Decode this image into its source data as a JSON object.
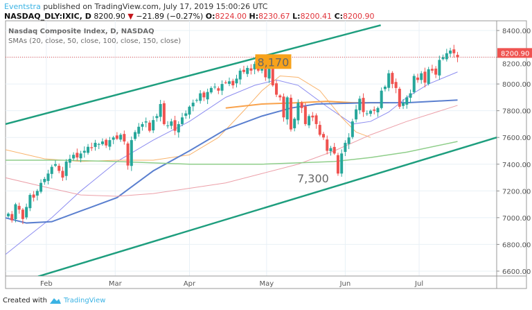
{
  "header": {
    "author": "Eventstra",
    "published": "published on TradingView.com, July 17, 2019 15:00:26 UTC",
    "symbol": "NASDAQ_DLY:IXIC, D",
    "last": "8200.90",
    "change": "−21.89 (−0.27%)",
    "o_label": "O:",
    "o": "8224.00",
    "h_label": "H:",
    "h": "8230.67",
    "l_label": "L:",
    "l": "8200.41",
    "c_label": "C:",
    "c": "8200.90"
  },
  "legend": {
    "title": "Nasdaq Composite Index, D, NASDAQ",
    "smas": "SMAs (20, close, 50, close, 100, close, 150, close)"
  },
  "footer": {
    "created": "Created with",
    "brand": "TradingView"
  },
  "colors": {
    "up": "#26a69a",
    "down": "#ef5350",
    "channel": "#1e9e7e",
    "price_tag": "#ef5350",
    "label_box": "#f7a21b"
  },
  "chart_data": {
    "type": "candlestick",
    "y_ticks": [
      "8400.00",
      "8200.00",
      "8000.00",
      "7800.00",
      "7600.00",
      "7400.00",
      "7200.00",
      "7000.00",
      "6800.00",
      "6600.00"
    ],
    "y_tick_values": [
      8400,
      8200,
      8000,
      7800,
      7600,
      7400,
      7200,
      7000,
      6800,
      6600
    ],
    "ylim": [
      6600,
      8400
    ],
    "x_ticks": [
      {
        "label": "Feb",
        "i": 10.5
      },
      {
        "label": "Mar",
        "i": 29.5
      },
      {
        "label": "Apr",
        "i": 50
      },
      {
        "label": "May",
        "i": 71.3
      },
      {
        "label": "Jun",
        "i": 93
      },
      {
        "label": "Jul",
        "i": 113.4
      }
    ],
    "price_tag": "8200.90",
    "price_line": 8200.9,
    "closes": [
      7030,
      6980,
      7100,
      7060,
      6990,
      7080,
      7170,
      7150,
      7200,
      7260,
      7290,
      7330,
      7380,
      7400,
      7350,
      7300,
      7420,
      7440,
      7470,
      7450,
      7480,
      7500,
      7530,
      7520,
      7560,
      7550,
      7570,
      7540,
      7580,
      7600,
      7590,
      7620,
      7570,
      7390,
      7580,
      7640,
      7680,
      7700,
      7720,
      7650,
      7730,
      7760,
      7850,
      7700,
      7690,
      7720,
      7650,
      7700,
      7750,
      7780,
      7830,
      7860,
      7880,
      7930,
      7900,
      7940,
      7970,
      7980,
      7950,
      8000,
      8010,
      8020,
      7990,
      8040,
      8100,
      8090,
      8120,
      8100,
      8150,
      8100,
      8160,
      8050,
      8120,
      7990,
      7920,
      7900,
      7750,
      7900,
      7660,
      7740,
      7860,
      7820,
      7700,
      7760,
      7750,
      7700,
      7620,
      7600,
      7500,
      7520,
      7480,
      7330,
      7480,
      7560,
      7600,
      7720,
      7810,
      7890,
      7790,
      7780,
      7800,
      7800,
      7820,
      7950,
      7980,
      8080,
      8000,
      7970,
      7830,
      7860,
      7900,
      7930,
      8060,
      8030,
      8080,
      8010,
      8110,
      8100,
      8070,
      8180,
      8200,
      8230,
      8250,
      8230,
      8200.9
    ],
    "smas": [
      {
        "name": "SMA purple",
        "color": "#8c8cf0",
        "width": 1,
        "points": [
          [
            -1,
            6720
          ],
          [
            5,
            6850
          ],
          [
            12,
            7000
          ],
          [
            20,
            7200
          ],
          [
            30,
            7420
          ],
          [
            40,
            7580
          ],
          [
            50,
            7720
          ],
          [
            60,
            7900
          ],
          [
            68,
            7990
          ],
          [
            74,
            8030
          ],
          [
            80,
            7990
          ],
          [
            88,
            7830
          ],
          [
            95,
            7700
          ],
          [
            100,
            7720
          ],
          [
            105,
            7790
          ],
          [
            110,
            7900
          ],
          [
            116,
            8000
          ],
          [
            124,
            8090
          ]
        ]
      },
      {
        "name": "SMA orange",
        "color": "#f9b36b",
        "width": 1,
        "points": [
          [
            -1,
            7510
          ],
          [
            10,
            7440
          ],
          [
            20,
            7420
          ],
          [
            30,
            7430
          ],
          [
            40,
            7430
          ],
          [
            50,
            7470
          ],
          [
            58,
            7600
          ],
          [
            65,
            7800
          ],
          [
            70,
            7950
          ],
          [
            75,
            8060
          ],
          [
            80,
            8050
          ],
          [
            86,
            7950
          ],
          [
            92,
            7750
          ],
          [
            96,
            7640
          ],
          [
            100,
            7600
          ]
        ]
      },
      {
        "name": "SMA orange thick",
        "color": "#f9a24b",
        "width": 2,
        "points": [
          [
            60,
            7820
          ],
          [
            70,
            7850
          ],
          [
            80,
            7860
          ],
          [
            88,
            7870
          ],
          [
            95,
            7860
          ],
          [
            105,
            7860
          ]
        ]
      },
      {
        "name": "SMA blue",
        "color": "#5a7fcf",
        "width": 2,
        "points": [
          [
            -1,
            7000
          ],
          [
            5,
            6960
          ],
          [
            12,
            6970
          ],
          [
            20,
            7050
          ],
          [
            30,
            7150
          ],
          [
            40,
            7350
          ],
          [
            50,
            7500
          ],
          [
            60,
            7660
          ],
          [
            70,
            7760
          ],
          [
            78,
            7820
          ],
          [
            85,
            7850
          ],
          [
            100,
            7860
          ],
          [
            110,
            7860
          ],
          [
            124,
            7880
          ]
        ]
      },
      {
        "name": "SMA pink",
        "color": "#ec9fa8",
        "width": 1,
        "points": [
          [
            -1,
            7300
          ],
          [
            10,
            7230
          ],
          [
            20,
            7170
          ],
          [
            30,
            7160
          ],
          [
            40,
            7180
          ],
          [
            50,
            7220
          ],
          [
            60,
            7260
          ],
          [
            70,
            7330
          ],
          [
            80,
            7400
          ],
          [
            90,
            7500
          ],
          [
            100,
            7620
          ],
          [
            110,
            7720
          ],
          [
            124,
            7840
          ]
        ]
      },
      {
        "name": "SMA green",
        "color": "#8fce8a",
        "width": 1.5,
        "points": [
          [
            -1,
            7430
          ],
          [
            15,
            7430
          ],
          [
            30,
            7420
          ],
          [
            50,
            7400
          ],
          [
            70,
            7400
          ],
          [
            90,
            7420
          ],
          [
            100,
            7450
          ],
          [
            110,
            7490
          ],
          [
            124,
            7570
          ]
        ]
      }
    ],
    "channel": [
      {
        "from": [
          -0.76,
          7700
        ],
        "to": [
          102.8,
          8440
        ]
      },
      {
        "from": [
          8.2,
          6560
        ],
        "to": [
          134.8,
          7600
        ]
      }
    ],
    "annotations": [
      {
        "text": "8,170",
        "i": 69.5,
        "price": 8170,
        "boxed": true
      },
      {
        "text": "7,300",
        "i": 80.5,
        "price": 7300,
        "boxed": false
      }
    ]
  }
}
